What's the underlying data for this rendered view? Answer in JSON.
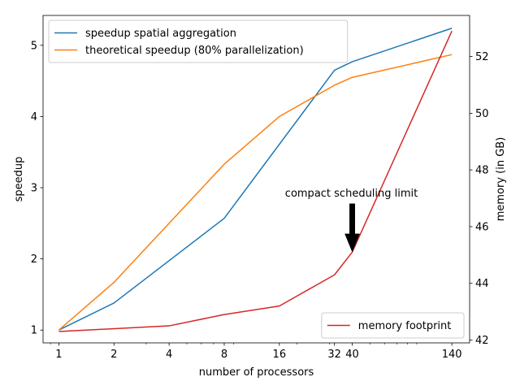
{
  "chart_data": {
    "type": "line",
    "x_scale": "log",
    "xlabel": "number of processors",
    "ylabel_left": "speedup",
    "ylabel_right": "memory (in GB)",
    "x_ticks": [
      1,
      2,
      4,
      8,
      16,
      32,
      40,
      140
    ],
    "x_tick_labels": [
      "1",
      "2",
      "4",
      "8",
      "16",
      "32",
      "40",
      "140"
    ],
    "xlim": [
      0.82,
      175
    ],
    "ylim_left": [
      0.82,
      5.42
    ],
    "ylim_right": [
      41.9,
      53.45
    ],
    "y_ticks_left": [
      1,
      2,
      3,
      4,
      5
    ],
    "y_ticks_right": [
      42,
      44,
      46,
      48,
      50,
      52
    ],
    "series": [
      {
        "name": "speedup spatial aggregation",
        "axis": "left",
        "color": "#1f77b4",
        "x": [
          1,
          2,
          8,
          32,
          40,
          140
        ],
        "y": [
          1.0,
          1.38,
          2.57,
          4.65,
          4.77,
          5.24
        ]
      },
      {
        "name": "theoretical speedup (80% parallelization)",
        "axis": "left",
        "color": "#ff7f0e",
        "x": [
          1,
          2,
          8,
          16,
          32,
          40,
          140
        ],
        "y": [
          1.0,
          1.67,
          3.33,
          4.0,
          4.44,
          4.55,
          4.87
        ]
      },
      {
        "name": "memory footprint",
        "axis": "right",
        "color": "#d62728",
        "x": [
          1,
          4,
          8,
          16,
          32,
          40,
          140
        ],
        "y": [
          42.3,
          42.5,
          42.9,
          43.2,
          44.3,
          45.1,
          52.9
        ]
      }
    ],
    "legends": [
      {
        "placement": "upper-left",
        "entries": [
          "speedup spatial aggregation",
          "theoretical speedup (80% parallelization)"
        ]
      },
      {
        "placement": "lower-right",
        "entries": [
          "memory footprint"
        ]
      }
    ],
    "annotation": {
      "text": "compact scheduling limit",
      "target_x": 40,
      "target_y": 2.1,
      "text_x": 40,
      "text_y": 2.9
    },
    "grid": false
  }
}
